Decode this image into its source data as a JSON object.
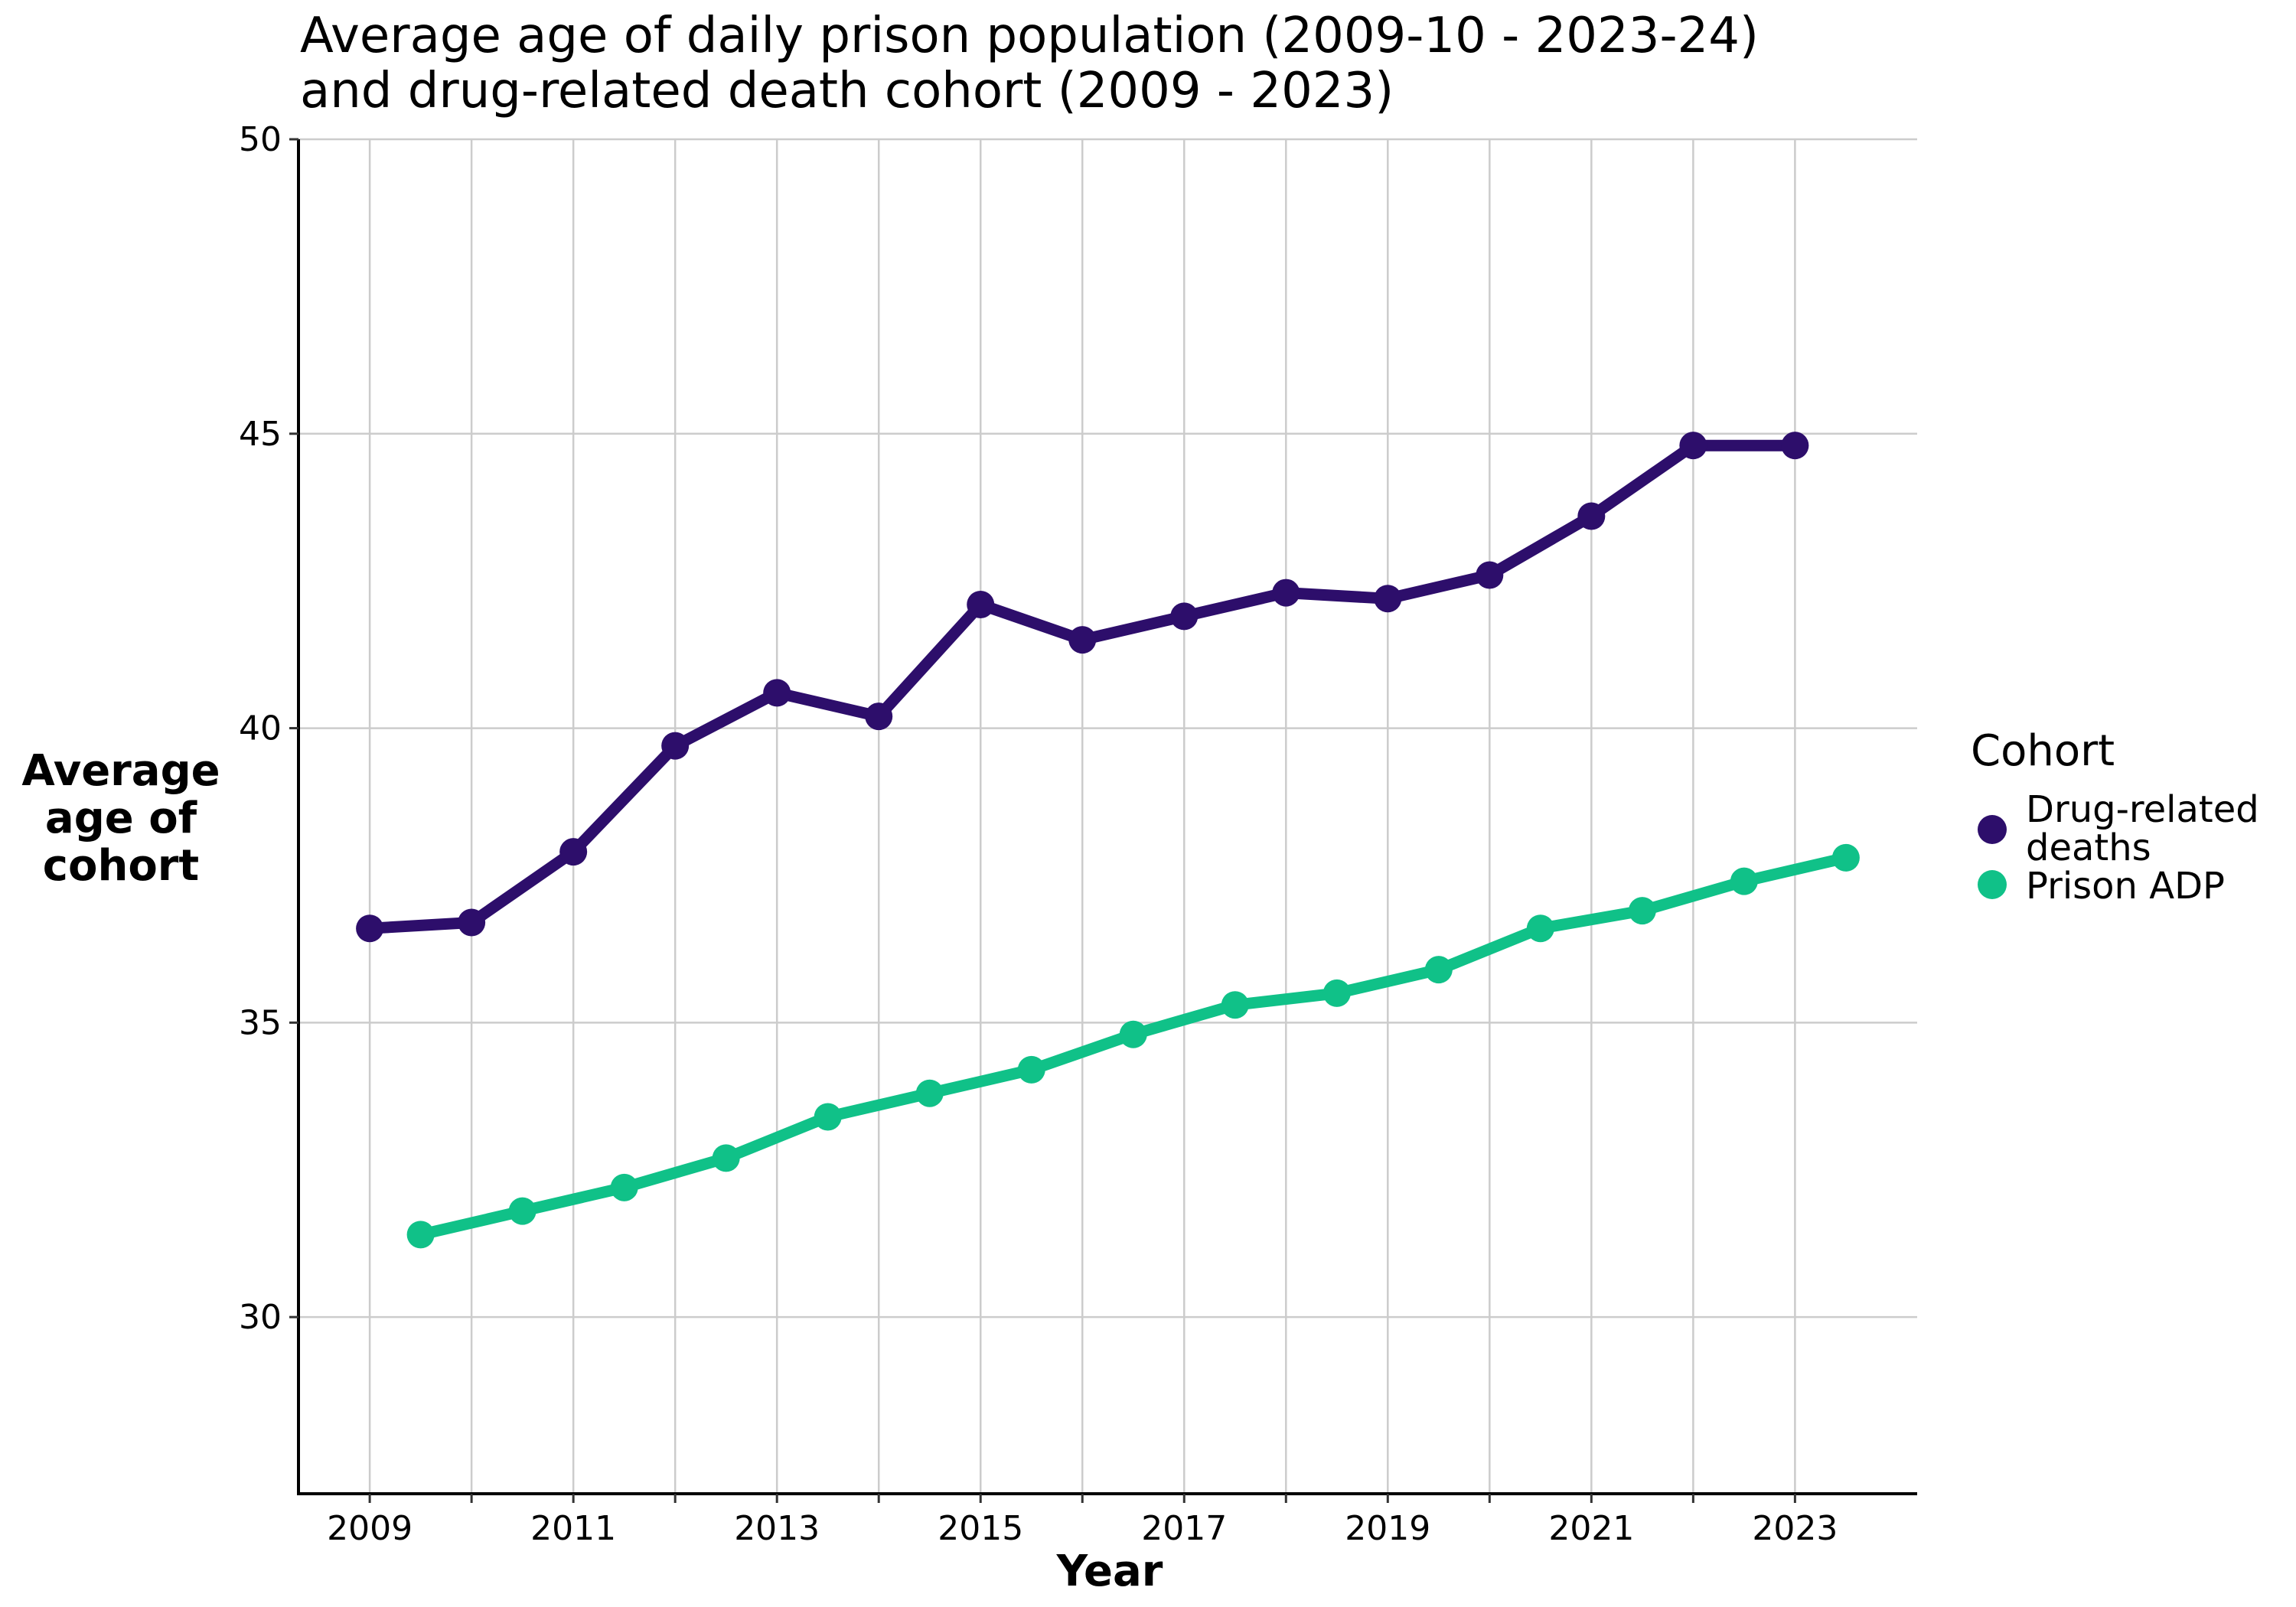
{
  "chart_data": {
    "type": "line",
    "title": "Average age of daily prison population (2009-10 - 2023-24)\nand drug-related death cohort (2009 - 2023)",
    "title_lines": [
      "Average age of daily prison population (2009-10 - 2023-24)",
      "and drug-related death cohort (2009 - 2023)"
    ],
    "xlabel": "Year",
    "ylabel": "Average age of cohort",
    "ylabel_lines": [
      "Average",
      "age of",
      "cohort"
    ],
    "xlim": [
      2008.3,
      2024.2
    ],
    "ylim": [
      27,
      50
    ],
    "x_ticks": [
      2009,
      2010,
      2011,
      2012,
      2013,
      2014,
      2015,
      2016,
      2017,
      2018,
      2019,
      2020,
      2021,
      2022,
      2023
    ],
    "x_tick_labels": [
      "2009",
      "",
      "2011",
      "",
      "2013",
      "",
      "2015",
      "",
      "2017",
      "",
      "2019",
      "",
      "2021",
      "",
      "2023"
    ],
    "y_ticks": [
      30,
      35,
      40,
      45,
      50
    ],
    "y_tick_labels": [
      "30",
      "35",
      "40",
      "45",
      "50"
    ],
    "grid": true,
    "legend": {
      "title": "Cohort",
      "position": "right",
      "entries": [
        {
          "label_lines": [
            "Drug-related",
            "deaths"
          ],
          "color": "#2d0e6b"
        },
        {
          "label_lines": [
            "Prison ADP"
          ],
          "color": "#10c188"
        }
      ]
    },
    "series": [
      {
        "name": "Drug-related deaths",
        "color": "#2d0e6b",
        "x": [
          2009,
          2010,
          2011,
          2012,
          2013,
          2014,
          2015,
          2016,
          2017,
          2018,
          2019,
          2020,
          2021,
          2022,
          2023
        ],
        "y": [
          36.6,
          36.7,
          37.9,
          39.7,
          40.6,
          40.2,
          42.1,
          41.5,
          41.9,
          42.3,
          42.2,
          42.6,
          43.6,
          44.8,
          44.8
        ]
      },
      {
        "name": "Prison ADP",
        "color": "#10c188",
        "x": [
          2009.5,
          2010.5,
          2011.5,
          2012.5,
          2013.5,
          2014.5,
          2015.5,
          2016.5,
          2017.5,
          2018.5,
          2019.5,
          2020.5,
          2021.5,
          2022.5,
          2023.5
        ],
        "y": [
          31.4,
          31.8,
          32.2,
          32.7,
          33.4,
          33.8,
          34.2,
          34.8,
          35.3,
          35.5,
          35.9,
          36.6,
          36.9,
          37.4,
          37.8
        ]
      }
    ]
  }
}
